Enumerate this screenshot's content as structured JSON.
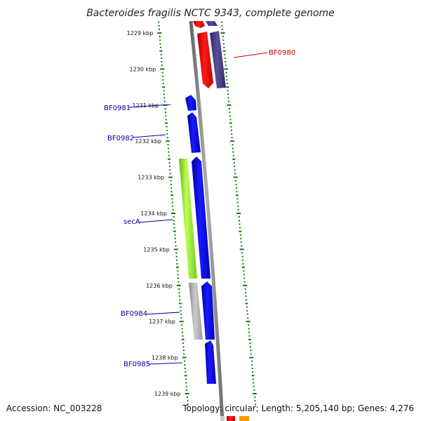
{
  "title": "Bacteroides fragilis NCTC 9343, complete genome",
  "footer": {
    "accession": "Accession: NC_003228",
    "summary": "Topology: circular; Length: 5,205,140 bp; Genes: 4,276"
  },
  "ticks": [
    {
      "label": "1229 kbp",
      "kbp": 1229
    },
    {
      "label": "1230 kbp",
      "kbp": 1230
    },
    {
      "label": "1231 kbp",
      "kbp": 1231
    },
    {
      "label": "1232 kbp",
      "kbp": 1232
    },
    {
      "label": "1233 kbp",
      "kbp": 1233
    },
    {
      "label": "1234 kbp",
      "kbp": 1234
    },
    {
      "label": "1235 kbp",
      "kbp": 1235
    },
    {
      "label": "1236 kbp",
      "kbp": 1236
    },
    {
      "label": "1237 kbp",
      "kbp": 1237
    },
    {
      "label": "1238 kbp",
      "kbp": 1238
    },
    {
      "label": "1239 kbp",
      "kbp": 1239
    }
  ],
  "gene_labels": [
    {
      "name": "BF0980",
      "color": "#cc0000"
    },
    {
      "name": "BF0981",
      "color": "#0000aa"
    },
    {
      "name": "BF0982",
      "color": "#0000aa"
    },
    {
      "name": "secA",
      "color": "#0000aa"
    },
    {
      "name": "BF0984",
      "color": "#0000aa"
    },
    {
      "name": "BF0985",
      "color": "#0000aa"
    }
  ],
  "colors": {
    "cds": "#0000ee",
    "red_feature": "#ee0000",
    "purple_feature": "#4a3f8a",
    "green_feature": "#99ee33",
    "grey_feature": "#aaaaaa",
    "backbone": "#808080",
    "tick": "#117711"
  }
}
